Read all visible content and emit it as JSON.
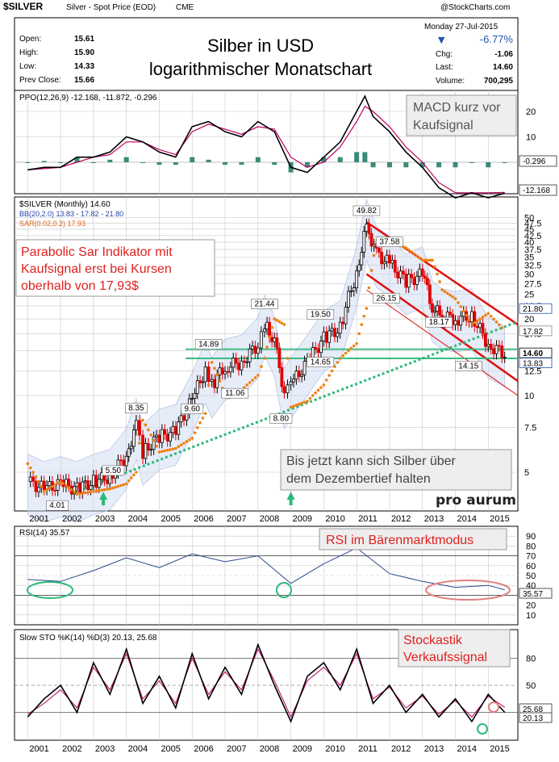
{
  "header": {
    "symbol": "$SILVER",
    "description": "Silver - Spot Price (EOD)",
    "exchange": "CME",
    "site": "@StockCharts.com",
    "title_line1": "Silber in USD",
    "title_line2": "logarithmischer Monatschart",
    "date": "Monday  27-Jul-2015",
    "change_pct": "-6.77%",
    "stats_left": [
      {
        "label": "Open:",
        "value": "15.61"
      },
      {
        "label": "High:",
        "value": "15.90"
      },
      {
        "label": "Low:",
        "value": "14.33"
      },
      {
        "label": "Prev Close:",
        "value": "15.66"
      }
    ],
    "stats_right": [
      {
        "label": "Chg:",
        "value": "-1.06"
      },
      {
        "label": "Last:",
        "value": "14.60"
      },
      {
        "label": "Volume:",
        "value": "700,295"
      }
    ]
  },
  "colors": {
    "candle_up": "#000000",
    "candle_down": "#e00000",
    "histogram": "#3a8a7a",
    "sar": "#f08010",
    "trend_green": "#2db87a",
    "channel_red": "#e01010",
    "bb_band": "#c8d4f0",
    "annotation_red": "#e02020",
    "signal_line": "#c00060"
  },
  "chart_data": [
    {
      "type": "line",
      "panel": "PPO",
      "label": "PPO(12,26,9) -12.168, -11.872, -0.296",
      "x": [
        "2001-01",
        "2001-07",
        "2002-01",
        "2002-07",
        "2003-01",
        "2003-07",
        "2004-01",
        "2004-07",
        "2005-01",
        "2005-07",
        "2006-01",
        "2006-07",
        "2007-01",
        "2007-07",
        "2008-01",
        "2008-07",
        "2009-01",
        "2009-07",
        "2010-01",
        "2010-07",
        "2011-01",
        "2011-04",
        "2011-07",
        "2012-01",
        "2012-07",
        "2013-01",
        "2013-07",
        "2014-01",
        "2014-07",
        "2015-01",
        "2015-07"
      ],
      "series": [
        {
          "name": "PPO",
          "values": [
            -3,
            -2,
            -2,
            2,
            2,
            4,
            10,
            8,
            4,
            2,
            14,
            16,
            12,
            10,
            16,
            12,
            -2,
            -4,
            2,
            8,
            20,
            26,
            18,
            12,
            4,
            -2,
            -10,
            -14,
            -12,
            -14,
            -12.168
          ]
        },
        {
          "name": "Signal",
          "values": [
            -3,
            -2.5,
            -2,
            0,
            2,
            3,
            8,
            8,
            5,
            3,
            12,
            15,
            13,
            11,
            14,
            13,
            2,
            -2,
            0,
            6,
            16,
            22,
            20,
            14,
            6,
            0,
            -8,
            -12,
            -12,
            -12,
            -11.872
          ]
        },
        {
          "name": "Histogram",
          "values": [
            0,
            0.5,
            0,
            2,
            0,
            1,
            2,
            0,
            -1,
            -1,
            2,
            1,
            -1,
            -1,
            2,
            -1,
            -4,
            -2,
            2,
            2,
            4,
            4,
            -2,
            -2,
            -2,
            -2,
            -2,
            -2,
            0,
            -2,
            -0.296
          ]
        }
      ],
      "y_ticks": [
        20,
        10
      ],
      "value_labels": [
        "-0.296",
        "-12.168"
      ],
      "annotation": [
        "MACD kurz vor",
        "Kaufsignal"
      ]
    },
    {
      "type": "line",
      "panel": "Price",
      "scale": "log",
      "label": "$SILVER (Monthly) 14.60",
      "legend": [
        "$SILVER (Monthly) 14.60",
        "BB(20,2.0) 13.83 - 17.82 - 21.80",
        "SAR(0.02,0.2) 17.93"
      ],
      "x": [
        2001,
        2001.5,
        2002,
        2002.5,
        2003,
        2003.5,
        2004,
        2004.3,
        2004.5,
        2005,
        2005.5,
        2006,
        2006.4,
        2006.6,
        2007,
        2007.5,
        2008,
        2008.2,
        2008.5,
        2008.8,
        2009,
        2009.5,
        2010,
        2010.5,
        2011,
        2011.3,
        2011.6,
        2012,
        2012.5,
        2013,
        2013.3,
        2013.6,
        2014,
        2014.5,
        2015,
        2015.5
      ],
      "series": [
        {
          "name": "$SILVER (Monthly)",
          "values": [
            4.6,
            4.3,
            4.5,
            4.3,
            4.6,
            4.8,
            5.8,
            7.6,
            6.0,
            6.9,
            7.2,
            9.6,
            12.6,
            11.0,
            13.0,
            13.5,
            15.8,
            19.4,
            16.0,
            10.0,
            11.0,
            13.5,
            16.8,
            18.4,
            30.0,
            46.0,
            36.0,
            33.0,
            28.0,
            30.0,
            22.0,
            20.5,
            20.0,
            20.5,
            15.8,
            14.6
          ]
        },
        {
          "name": "Parabolic SAR",
          "values": [
            5.4,
            4.2,
            4.6,
            4.1,
            4.2,
            4.3,
            4.5,
            5.0,
            8.0,
            6.0,
            6.2,
            6.8,
            8.5,
            13.5,
            10.0,
            10.5,
            12.0,
            14.0,
            20.0,
            19.0,
            9.0,
            9.5,
            11.0,
            14.0,
            16.0,
            22.0,
            40.0,
            40.0,
            38.0,
            34.0,
            34.0,
            26.0,
            24.0,
            19.0,
            21.0,
            17.93
          ]
        }
      ],
      "y_ticks": [
        50,
        47.5,
        45,
        42.5,
        40,
        37.5,
        35,
        32.5,
        30,
        27.5,
        25,
        22.5,
        20,
        17.5,
        15,
        12.5,
        10,
        7.5,
        5
      ],
      "value_labels": [
        "21.80",
        "17.82",
        "14.60",
        "13.83"
      ],
      "data_labels": [
        {
          "x": 2001.9,
          "text": "4.01"
        },
        {
          "x": 2003.6,
          "text": "5.50"
        },
        {
          "x": 2004.3,
          "text": "8.35"
        },
        {
          "x": 2006.0,
          "text": "9.60"
        },
        {
          "x": 2006.5,
          "text": "14.89"
        },
        {
          "x": 2007.3,
          "text": "11.06"
        },
        {
          "x": 2008.2,
          "text": "21.44"
        },
        {
          "x": 2008.7,
          "text": "8.80"
        },
        {
          "x": 2009.9,
          "text": "14.65"
        },
        {
          "x": 2009.9,
          "text": "19.50"
        },
        {
          "x": 2011.3,
          "text": "49.82"
        },
        {
          "x": 2012.0,
          "text": "37.58"
        },
        {
          "x": 2011.9,
          "text": "26.15"
        },
        {
          "x": 2013.5,
          "text": "18.17"
        },
        {
          "x": 2014.4,
          "text": "14.15"
        }
      ],
      "annotations": [
        [
          "Parabolic Sar Indikator mit",
          "Kaufsignal erst bei Kursen",
          "oberhalb von 17,93$"
        ],
        [
          "Bis jetzt kann sich Silber über",
          "dem Dezembertief halten"
        ]
      ],
      "watermark": "pro aurum"
    },
    {
      "type": "line",
      "panel": "RSI",
      "label": "RSI(14) 35.57",
      "x": [
        2001,
        2002,
        2003,
        2004,
        2005,
        2006,
        2007,
        2008,
        2009,
        2010,
        2011,
        2012,
        2013,
        2014,
        2015,
        2015.5
      ],
      "series": [
        {
          "name": "RSI(14)",
          "values": [
            46,
            44,
            55,
            68,
            58,
            72,
            64,
            70,
            42,
            62,
            78,
            52,
            44,
            38,
            40,
            35.57
          ]
        }
      ],
      "y_ticks": [
        90,
        80,
        70,
        60,
        50,
        40,
        30,
        20,
        10
      ],
      "value_labels": [
        "35.57"
      ],
      "annotation": "RSI im Bärenmarktmodus"
    },
    {
      "type": "line",
      "panel": "Slow STO",
      "label": "Slow STO %K(14) %D(3) 20.13, 25.68",
      "x": [
        2001,
        2001.5,
        2002,
        2002.5,
        2003,
        2003.5,
        2004,
        2004.5,
        2005,
        2005.5,
        2006,
        2006.5,
        2007,
        2007.5,
        2008,
        2008.5,
        2009,
        2009.5,
        2010,
        2010.5,
        2011,
        2011.5,
        2012,
        2012.5,
        2013,
        2013.5,
        2014,
        2014.5,
        2015,
        2015.5
      ],
      "series": [
        {
          "name": "%K",
          "values": [
            15,
            35,
            50,
            20,
            75,
            40,
            90,
            30,
            60,
            25,
            85,
            35,
            70,
            40,
            95,
            50,
            10,
            60,
            75,
            45,
            90,
            30,
            50,
            20,
            40,
            15,
            35,
            10,
            40,
            20.13
          ]
        },
        {
          "name": "%D",
          "values": [
            18,
            30,
            45,
            25,
            70,
            45,
            85,
            35,
            55,
            30,
            80,
            40,
            65,
            45,
            90,
            55,
            15,
            55,
            70,
            50,
            85,
            35,
            48,
            25,
            38,
            18,
            33,
            15,
            38,
            25.68
          ]
        }
      ],
      "y_ticks": [
        80,
        50,
        20
      ],
      "value_labels": [
        "25.68",
        "20.13"
      ],
      "annotation": [
        "Stockastik",
        "Verkaufssignal"
      ]
    }
  ],
  "x_axis_years": [
    "2001",
    "2002",
    "2003",
    "2004",
    "2005",
    "2006",
    "2007",
    "2008",
    "2009",
    "2010",
    "2011",
    "2012",
    "2013",
    "2014",
    "2015"
  ]
}
